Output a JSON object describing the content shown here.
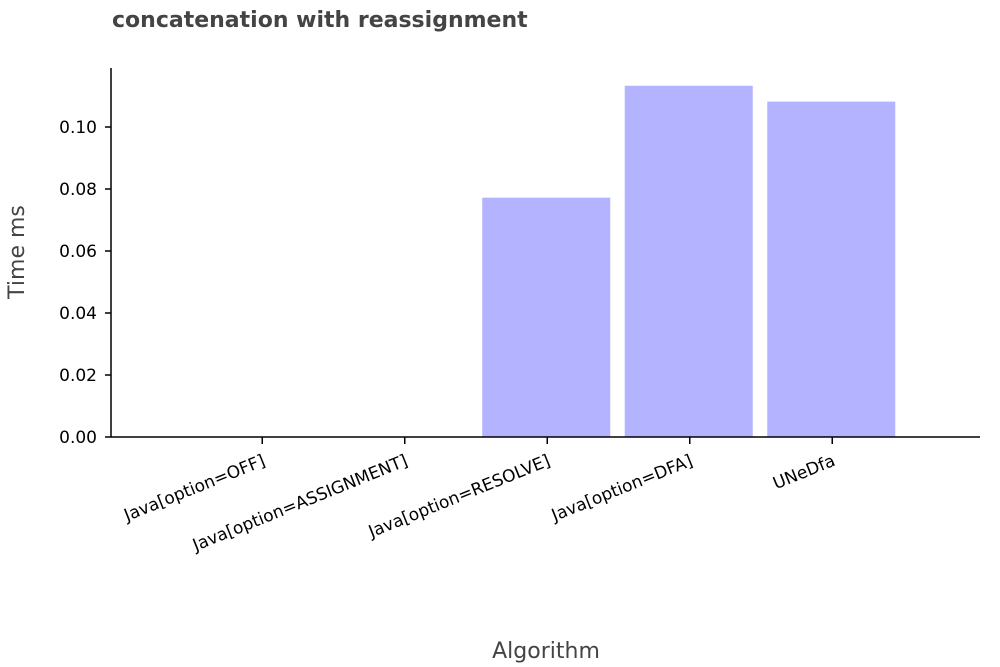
{
  "chart_data": {
    "type": "bar",
    "title": "concatenation with reassignment",
    "xlabel": "Algorithm",
    "ylabel": "Time ms",
    "categories": [
      "Java[option=OFF]",
      "Java[option=ASSIGNMENT]",
      "Java[option=RESOLVE]",
      "Java[option=DFA]",
      "UNeDfa"
    ],
    "values": [
      0.0,
      0.0,
      0.0772,
      0.1133,
      0.1082
    ],
    "ylim": [
      0,
      0.12
    ],
    "yticks": [
      "0.00",
      "0.02",
      "0.04",
      "0.06",
      "0.08",
      "0.10"
    ],
    "bar_color": "#b3b3ff",
    "grid": false
  }
}
